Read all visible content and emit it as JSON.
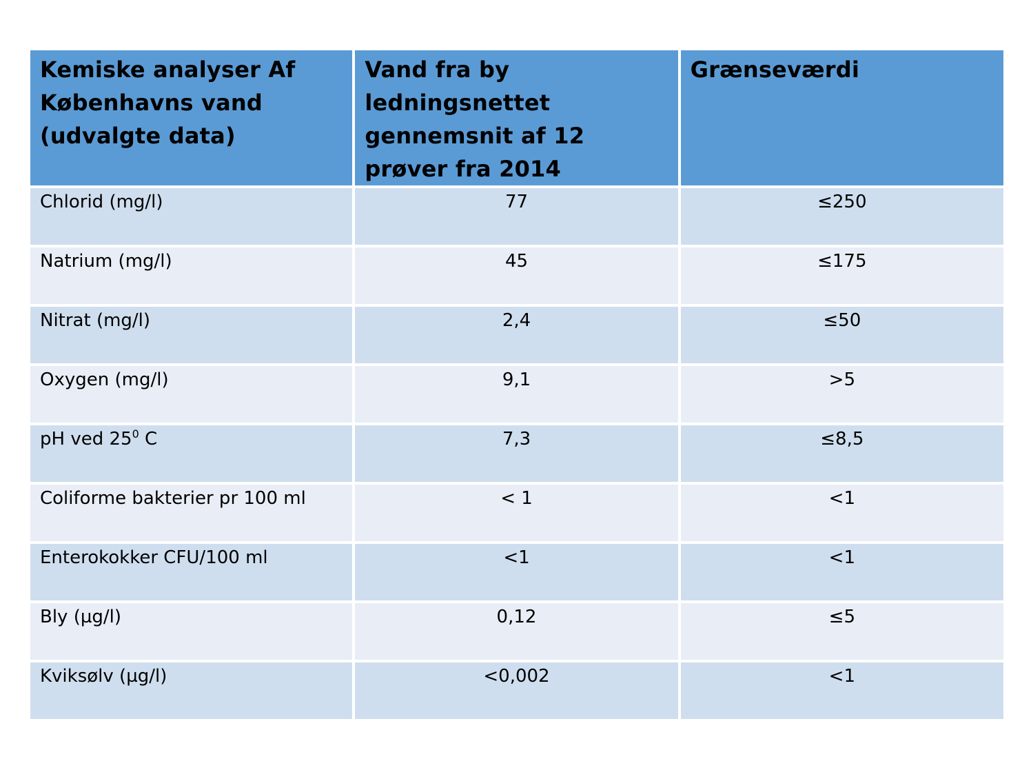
{
  "table": {
    "headers": [
      "Kemiske analyser Af Københavns vand (udvalgte data)",
      "Vand fra by ledningsnettet gennemsnit af 12 prøver fra 2014",
      "Grænseværdi"
    ],
    "rows": [
      {
        "parameter": "Chlorid (mg/l)",
        "value": "77",
        "limit": "≤250"
      },
      {
        "parameter": "Natrium (mg/l)",
        "value": "45",
        "limit": "≤175"
      },
      {
        "parameter": "Nitrat (mg/l)",
        "value": "2,4",
        "limit": "≤50"
      },
      {
        "parameter": "Oxygen (mg/l)",
        "value": "9,1",
        "limit": ">5"
      },
      {
        "parameter_prefix": "pH ved 25",
        "parameter_sup": "0",
        "parameter_suffix": " C",
        "value": "7,3",
        "limit": "≤8,5"
      },
      {
        "parameter": "Coliforme bakterier pr 100 ml",
        "value": "< 1",
        "limit": "<1"
      },
      {
        "parameter": "Enterokokker CFU/100 ml",
        "value": "<1",
        "limit": "<1"
      },
      {
        "parameter": "Bly (µg/l)",
        "value": "0,12",
        "limit": "≤5"
      },
      {
        "parameter": "Kviksølv (µg/l)",
        "value": "<0,002",
        "limit": "<1"
      }
    ]
  },
  "colors": {
    "header_bg": "#5b9bd5",
    "row_odd_bg": "#cfdeee",
    "row_even_bg": "#e8edf6"
  }
}
